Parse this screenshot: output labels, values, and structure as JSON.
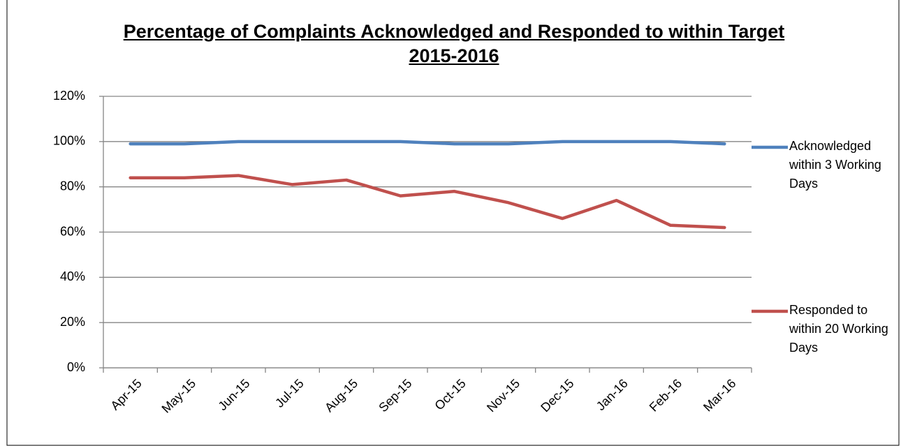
{
  "chart_data": {
    "type": "line",
    "title": "Percentage of Complaints Acknowledged and Responded to within Target 2015-2016",
    "categories": [
      "Apr-15",
      "May-15",
      "Jun-15",
      "Jul-15",
      "Aug-15",
      "Sep-15",
      "Oct-15",
      "Nov-15",
      "Dec-15",
      "Jan-16",
      "Feb-16",
      "Mar-16"
    ],
    "series": [
      {
        "name": "Acknowledged within 3 Working Days",
        "color": "#4f81bd",
        "values": [
          99,
          99,
          100,
          100,
          100,
          100,
          99,
          99,
          100,
          100,
          100,
          99
        ]
      },
      {
        "name": "Responded to within 20 Working Days",
        "color": "#c0504d",
        "values": [
          84,
          84,
          85,
          81,
          83,
          76,
          78,
          73,
          66,
          74,
          63,
          62
        ]
      }
    ],
    "ylim": [
      0,
      120
    ],
    "yticks": [
      {
        "value": 0,
        "label": "0%"
      },
      {
        "value": 20,
        "label": "20%"
      },
      {
        "value": 40,
        "label": "40%"
      },
      {
        "value": 60,
        "label": "60%"
      },
      {
        "value": 80,
        "label": "80%"
      },
      {
        "value": 100,
        "label": "100%"
      },
      {
        "value": 120,
        "label": "120%"
      }
    ],
    "grid": true,
    "legend": "right"
  }
}
